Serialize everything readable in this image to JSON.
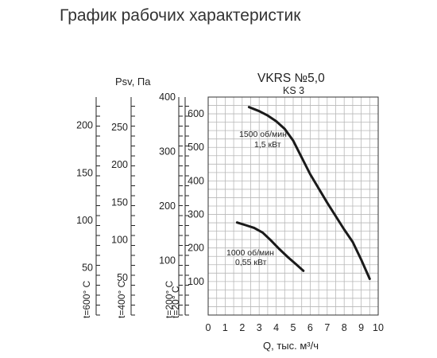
{
  "title": "График рабочих характеристик",
  "chart_data": {
    "type": "line",
    "model": "VKRS №5,0",
    "submodel": "KS 3",
    "xlabel": "Q, тыс. м³/ч",
    "ylabel": "Psv, Па",
    "xlim": [
      0,
      10
    ],
    "ylim": [
      0,
      650
    ],
    "grid": true,
    "x_ticks": [
      0,
      1,
      2,
      3,
      4,
      5,
      6,
      7,
      8,
      9,
      10
    ],
    "y_ticks": [
      100,
      200,
      300,
      400,
      500,
      600
    ],
    "series": [
      {
        "name": "1500 об/мин",
        "power": "1,5 кВт",
        "x": [
          2.4,
          3.0,
          3.5,
          4.0,
          4.5,
          5.0,
          5.5,
          6.0,
          7.0,
          8.0,
          8.5,
          9.0,
          9.5
        ],
        "y": [
          620,
          608,
          595,
          578,
          555,
          520,
          470,
          420,
          335,
          255,
          218,
          165,
          108
        ]
      },
      {
        "name": "1000 об/мин",
        "power": "0,55 кВт",
        "x": [
          1.7,
          2.2,
          2.7,
          3.2,
          3.7,
          4.2,
          4.7,
          5.2,
          5.6
        ],
        "y": [
          276,
          268,
          260,
          246,
          222,
          196,
          172,
          150,
          132
        ]
      }
    ],
    "secondary_axes": [
      {
        "label": "t=600° C",
        "ticks": [
          50,
          100,
          150,
          200
        ]
      },
      {
        "label": "t=400° C",
        "ticks": [
          50,
          100,
          150,
          200,
          250
        ]
      },
      {
        "label": "t=200° C",
        "ticks": [
          100,
          200,
          300,
          400
        ]
      },
      {
        "label": "t=20° C",
        "ticks": []
      }
    ]
  }
}
